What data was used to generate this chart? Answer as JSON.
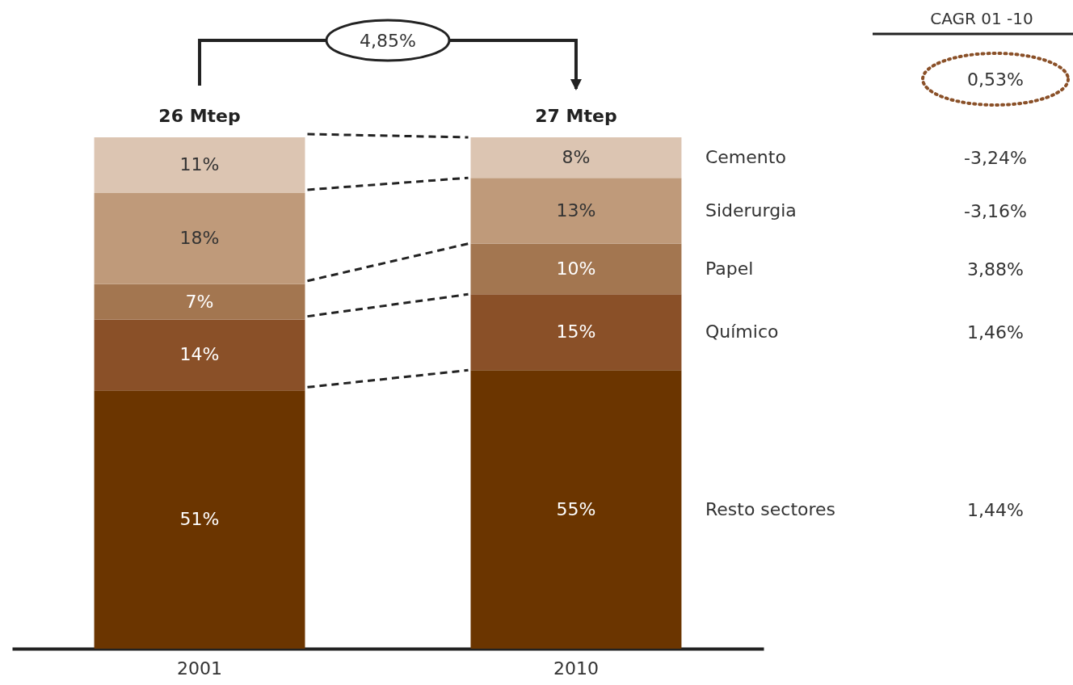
{
  "chart_data": {
    "type": "bar",
    "stacked": true,
    "legend": false,
    "categories": [
      "2001",
      "2010"
    ],
    "series": [
      {
        "name": "Resto sectores",
        "color": "#6b3500",
        "values": [
          51,
          55
        ],
        "value_labels": [
          "51%",
          "55%"
        ]
      },
      {
        "name": "Químico",
        "color": "#8a5028",
        "values": [
          14,
          15
        ],
        "value_labels": [
          "14%",
          "15%"
        ]
      },
      {
        "name": "Papel",
        "color": "#a37650",
        "values": [
          7,
          10
        ],
        "value_labels": [
          "7%",
          "10%"
        ]
      },
      {
        "name": "Siderurgia",
        "color": "#bf9a7a",
        "values": [
          18,
          13
        ],
        "value_labels": [
          "18%",
          "13%"
        ]
      },
      {
        "name": "Cemento",
        "color": "#dcc5b2",
        "values": [
          11,
          8
        ],
        "value_labels": [
          "11%",
          "8%"
        ]
      }
    ],
    "annotations": [
      {
        "text": "26 Mtep",
        "x": "2001",
        "y": 101
      },
      {
        "text": "27 Mtep",
        "x": "2010",
        "y": 101
      },
      "4,85%",
      "CAGR 01  -10",
      "0,53%",
      "-3,24%",
      "-3,16%",
      "3,88%",
      "1,46%",
      "1,44%"
    ]
  }
}
